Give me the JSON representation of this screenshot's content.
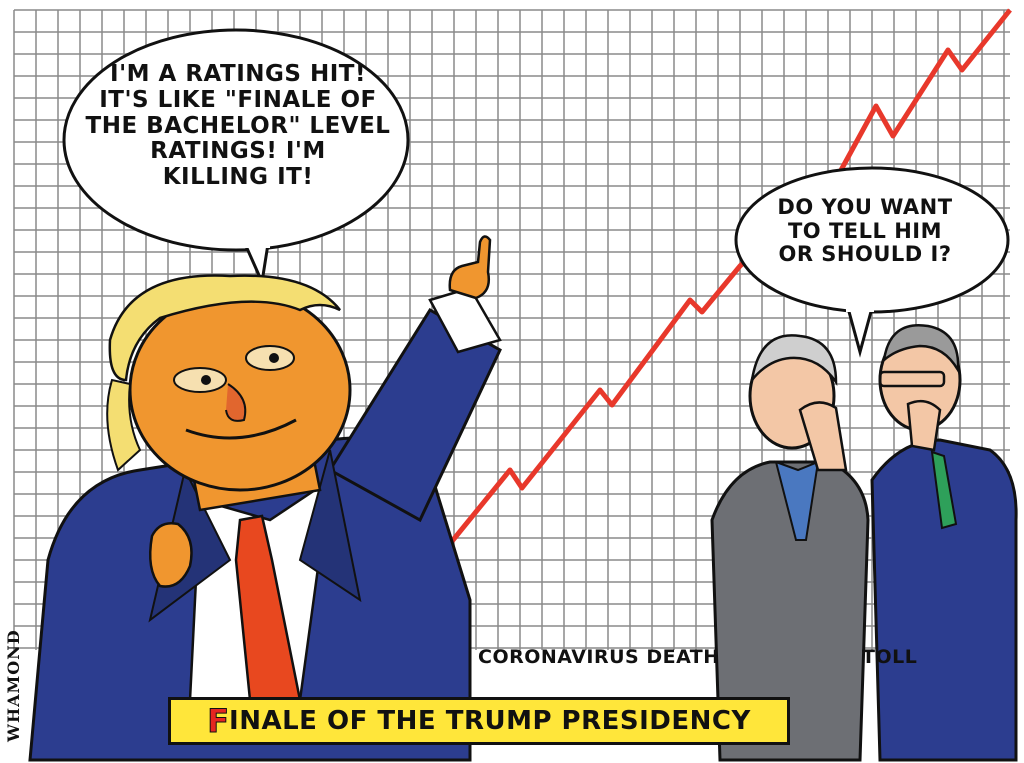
{
  "cartoon": {
    "speech_bubble_1": "I'M A RATINGS HIT!\nIT'S LIKE \"FINALE OF\nTHE BACHELOR\" LEVEL\nRATINGS! I'M\nKILLING IT!",
    "speech_bubble_2": "DO YOU WANT\nTO TELL HIM\nOR SHOULD I?",
    "chart_label_left": "CORONAVIRUS DEATH",
    "chart_label_right": "TOLL",
    "caption_initial": "F",
    "caption_rest": "INALE OF THE TRUMP PRESIDENCY",
    "signature": "WHAMOND"
  },
  "colors": {
    "trend_line": "#e8382b",
    "caption_background": "#ffe63a",
    "caption_initial": "#e52620",
    "grid": "#8a8a8a",
    "suit_navy": "#2c3d8f",
    "skin_orange": "#f0962f",
    "hair_yellow": "#f4de72",
    "tie_red": "#e8481f"
  }
}
